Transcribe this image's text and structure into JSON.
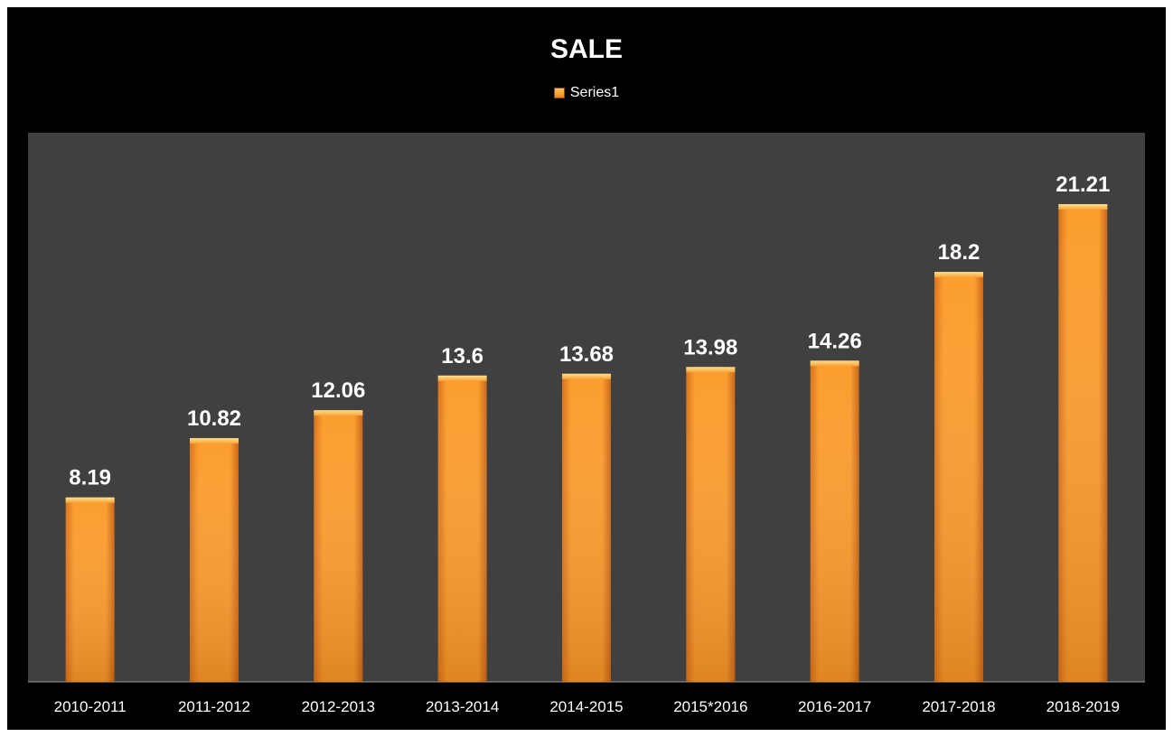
{
  "chart_data": {
    "type": "bar",
    "title": "SALE",
    "categories": [
      "2010-2011",
      "2011-2012",
      "2012-2013",
      "2013-2014",
      "2014-2015",
      "2015*2016",
      "2016-2017",
      "2017-2018",
      "2018-2019"
    ],
    "series": [
      {
        "name": "Series1",
        "values": [
          8.19,
          10.82,
          12.06,
          13.6,
          13.68,
          13.98,
          14.26,
          18.2,
          21.21
        ]
      }
    ],
    "data_labels": [
      "8.19",
      "10.82",
      "12.06",
      "13.6",
      "13.68",
      "13.98",
      "14.26",
      "18.2",
      "21.21"
    ],
    "xlabel": "",
    "ylabel": "",
    "ylim": [
      0,
      25
    ],
    "grid": false,
    "legend_position": "top",
    "colors": {
      "bar": "#f7941d",
      "plot_background": "#404040",
      "chart_background": "#000000",
      "text": "#ffffff"
    }
  }
}
